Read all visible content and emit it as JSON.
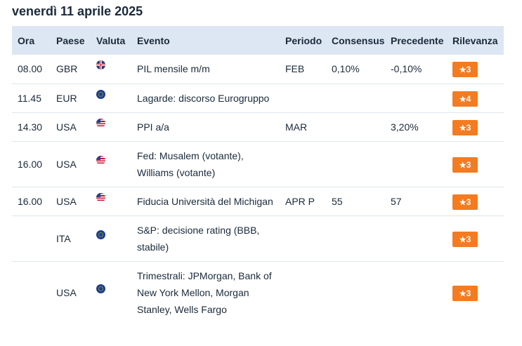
{
  "page": {
    "date_title": "venerdì 11 aprile 2025"
  },
  "table": {
    "headers": {
      "time": "Ora",
      "country": "Paese",
      "currency": "Valuta",
      "event": "Evento",
      "period": "Periodo",
      "consensus": "Consensus",
      "previous": "Precedente",
      "relevance": "Rilevanza"
    },
    "rows": [
      {
        "time": "08.00",
        "country": "GBR",
        "flag": "uk-flag-icon",
        "event": "PIL mensile m/m",
        "period": "FEB",
        "consensus": "0,10%",
        "previous": "-0,10%",
        "relevance": "3"
      },
      {
        "time": "11.45",
        "country": "EUR",
        "flag": "eu-flag-icon",
        "event": "Lagarde: discorso Eurogruppo",
        "period": "",
        "consensus": "",
        "previous": "",
        "relevance": "4"
      },
      {
        "time": "14.30",
        "country": "USA",
        "flag": "us-flag-icon",
        "event": "PPI a/a",
        "period": "MAR",
        "consensus": "",
        "previous": "3,20%",
        "relevance": "3"
      },
      {
        "time": "16.00",
        "country": "USA",
        "flag": "us-flag-icon",
        "event_lines": [
          "Fed: Musalem (votante),",
          "Williams (votante)"
        ],
        "period": "",
        "consensus": "",
        "previous": "",
        "relevance": "3"
      },
      {
        "time": "16.00",
        "country": "USA",
        "flag": "us-flag-icon",
        "event": "Fiducia Università del Michigan",
        "period": "APR P",
        "consensus": "55",
        "previous": "57",
        "relevance": "3"
      },
      {
        "time": "",
        "country": "ITA",
        "flag": "eu-flag-icon",
        "event_lines": [
          "S&P: decisione rating (BBB,",
          "stabile)"
        ],
        "period": "",
        "consensus": "",
        "previous": "",
        "relevance": "3"
      },
      {
        "time": "",
        "country": "USA",
        "flag": "eu-flag-icon",
        "event_lines": [
          "Trimestrali: JPMorgan, Bank of",
          "New York Mellon, Morgan",
          "Stanley, Wells Fargo"
        ],
        "period": "",
        "consensus": "",
        "previous": "",
        "relevance": "3"
      }
    ],
    "star_glyph": "★",
    "colors": {
      "header_bg": "#dde7f3",
      "badge_bg": "#f47b20",
      "text": "#1a2a3a"
    }
  }
}
